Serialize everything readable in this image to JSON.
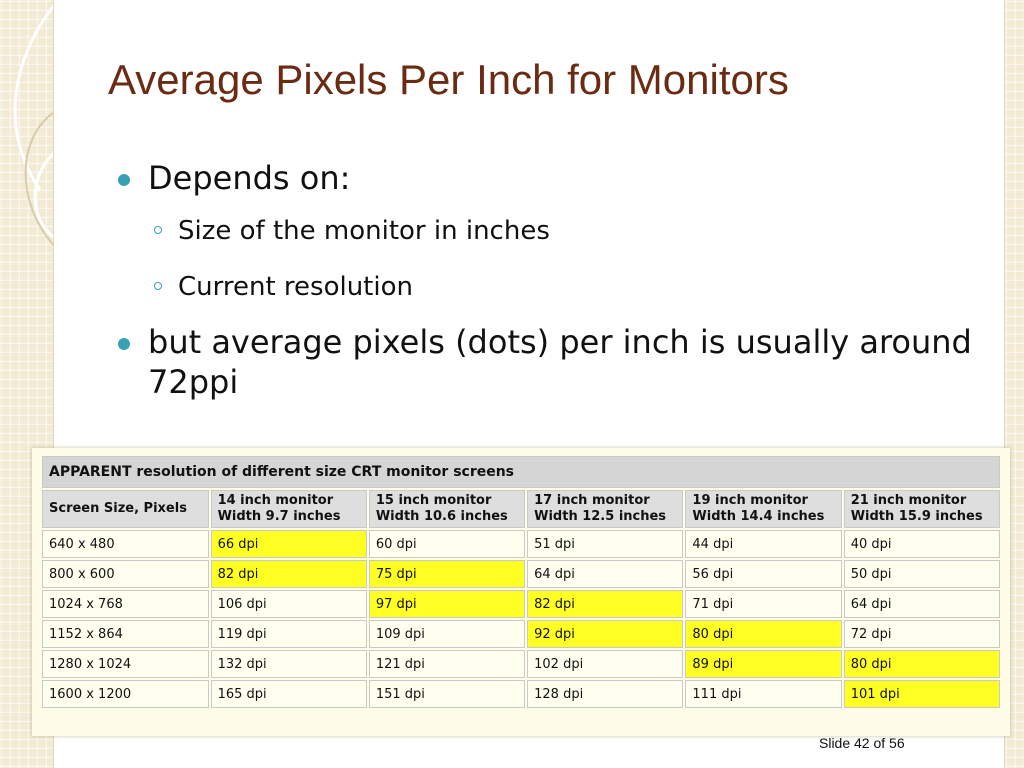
{
  "slide": {
    "title": "Average Pixels Per Inch for Monitors",
    "bullets": [
      {
        "text": "Depends on:",
        "sub": [
          "Size of the monitor in inches",
          "Current resolution"
        ]
      },
      {
        "text": "but average pixels (dots) per inch is usually around 72ppi"
      }
    ],
    "slide_number": "Slide 42 of 56"
  },
  "table": {
    "caption": "APPARENT resolution of different size CRT monitor screens",
    "header_first": "Screen Size, Pixels",
    "monitor_columns": [
      {
        "line1": "14 inch monitor",
        "line2": "Width 9.7 inches"
      },
      {
        "line1": "15 inch monitor",
        "line2": "Width 10.6 inches"
      },
      {
        "line1": "17 inch monitor",
        "line2": "Width 12.5 inches"
      },
      {
        "line1": "19 inch monitor",
        "line2": "Width 14.4 inches"
      },
      {
        "line1": "21 inch monitor",
        "line2": "Width 15.9 inches"
      }
    ],
    "rows": [
      {
        "size": "640 x 480",
        "values": [
          "66 dpi",
          "60 dpi",
          "51 dpi",
          "44 dpi",
          "40 dpi"
        ],
        "highlight": [
          0
        ]
      },
      {
        "size": "800 x 600",
        "values": [
          "82 dpi",
          "75 dpi",
          "64 dpi",
          "56 dpi",
          "50 dpi"
        ],
        "highlight": [
          0,
          1
        ]
      },
      {
        "size": "1024 x 768",
        "values": [
          "106 dpi",
          "97 dpi",
          "82 dpi",
          "71 dpi",
          "64 dpi"
        ],
        "highlight": [
          1,
          2
        ]
      },
      {
        "size": "1152 x 864",
        "values": [
          "119 dpi",
          "109 dpi",
          "92 dpi",
          "80 dpi",
          "72 dpi"
        ],
        "highlight": [
          2,
          3
        ]
      },
      {
        "size": "1280 x 1024",
        "values": [
          "132 dpi",
          "121 dpi",
          "102 dpi",
          "89 dpi",
          "80 dpi"
        ],
        "highlight": [
          3,
          4
        ]
      },
      {
        "size": "1600 x 1200",
        "values": [
          "165 dpi",
          "151 dpi",
          "128 dpi",
          "111 dpi",
          "101 dpi"
        ],
        "highlight": [
          4
        ]
      }
    ]
  },
  "colors": {
    "title": "#6a2b12",
    "bullet": "#3b9fb3",
    "caption": "#c0102a",
    "highlight": "#ffff24"
  }
}
